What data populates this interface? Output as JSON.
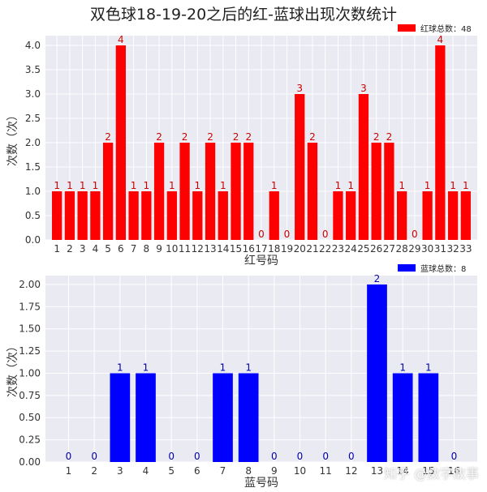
{
  "figure_title": "双色球18-19-20之后的红-蓝球出现次数统计",
  "watermark": "知乎 @数字故事",
  "chart_data": [
    {
      "type": "bar",
      "name": "red",
      "color": "#ff0000",
      "label_color": "#cc0000",
      "xlabel": "红号码",
      "ylabel": "次数（次）",
      "legend": "红球总数：48",
      "legend_position": "top-right",
      "grid": true,
      "ylim": [
        0,
        4.2
      ],
      "yticks": [
        "0.0",
        "0.5",
        "1.0",
        "1.5",
        "2.0",
        "2.5",
        "3.0",
        "3.5",
        "4.0"
      ],
      "categories": [
        "1",
        "2",
        "3",
        "4",
        "5",
        "6",
        "7",
        "8",
        "9",
        "10",
        "11",
        "12",
        "13",
        "14",
        "15",
        "16",
        "17",
        "18",
        "19",
        "20",
        "21",
        "22",
        "23",
        "24",
        "25",
        "26",
        "27",
        "28",
        "29",
        "30",
        "31",
        "32",
        "33"
      ],
      "values": [
        1,
        1,
        1,
        1,
        2,
        4,
        1,
        1,
        2,
        1,
        2,
        1,
        2,
        1,
        2,
        2,
        0,
        1,
        0,
        3,
        2,
        0,
        1,
        1,
        3,
        2,
        2,
        1,
        0,
        1,
        4,
        1,
        1
      ]
    },
    {
      "type": "bar",
      "name": "blue",
      "color": "#0000ff",
      "label_color": "#0000aa",
      "xlabel": "蓝号码",
      "ylabel": "次数（次）",
      "legend": "蓝球总数：8",
      "legend_position": "top-right",
      "grid": true,
      "ylim": [
        0,
        2.1
      ],
      "yticks": [
        "0.00",
        "0.25",
        "0.50",
        "0.75",
        "1.00",
        "1.25",
        "1.50",
        "1.75",
        "2.00"
      ],
      "categories": [
        "1",
        "2",
        "3",
        "4",
        "5",
        "6",
        "7",
        "8",
        "9",
        "10",
        "11",
        "12",
        "13",
        "14",
        "15",
        "16"
      ],
      "values": [
        0,
        0,
        1,
        1,
        0,
        0,
        1,
        1,
        0,
        0,
        0,
        0,
        2,
        1,
        1,
        0
      ]
    }
  ]
}
